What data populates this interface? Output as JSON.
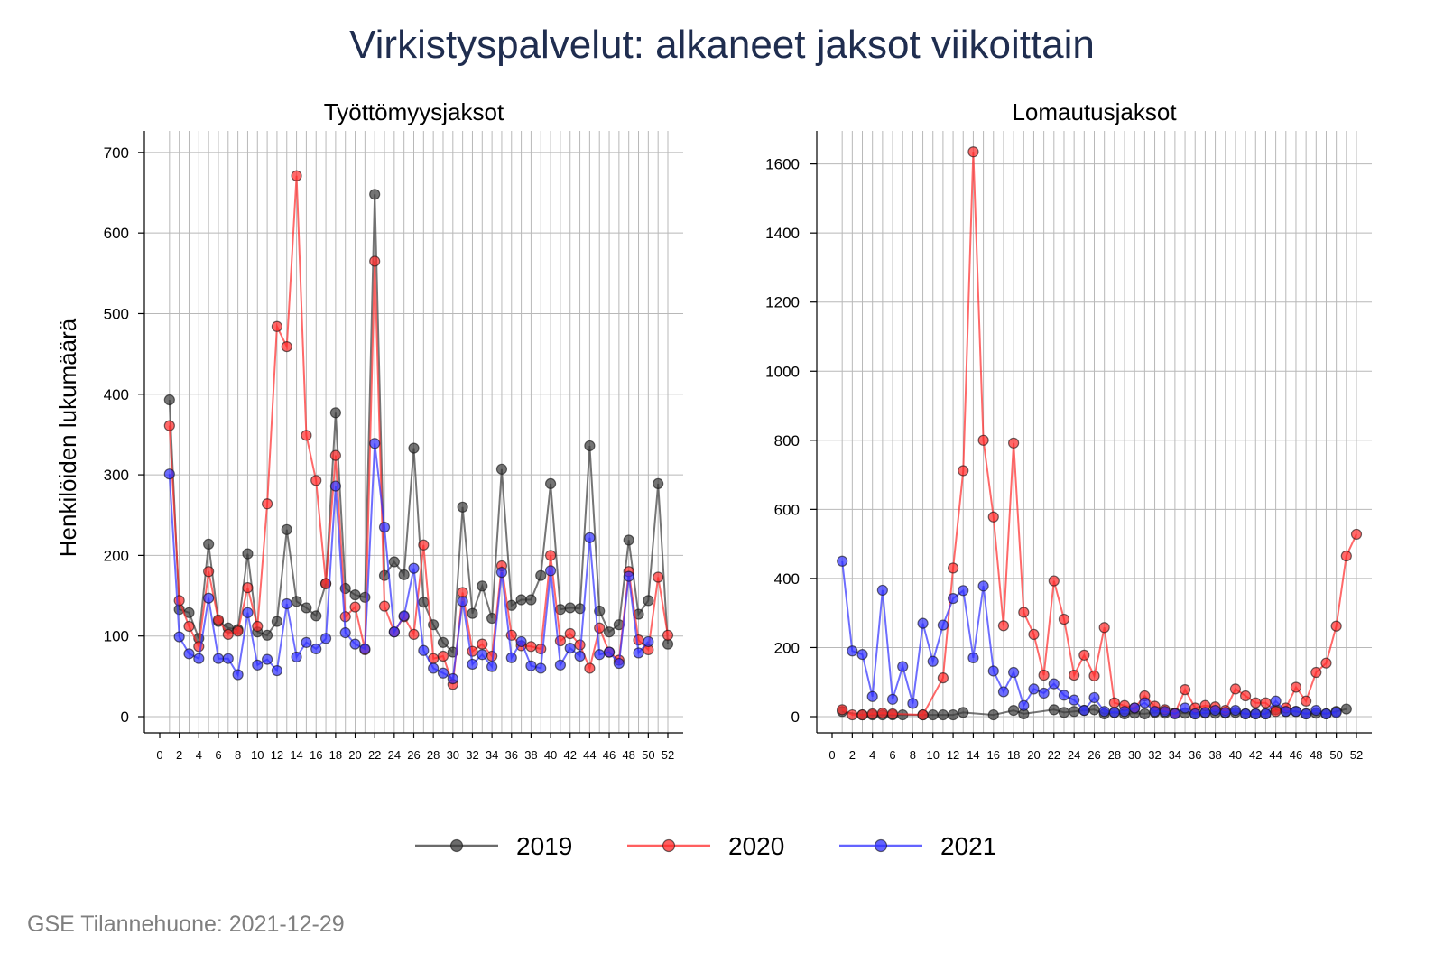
{
  "title": "Virkistyspalvelut: alkaneet jaksot viikoittain",
  "source": "GSE Tilannehuone: 2021-12-29",
  "ylabel": "Henkilöiden lukumäärä",
  "legend": [
    {
      "name": "2019",
      "color": "#3a3a3a"
    },
    {
      "name": "2020",
      "color": "#ff2a2a"
    },
    {
      "name": "2021",
      "color": "#2f2fff"
    }
  ],
  "chart_data": [
    {
      "type": "line",
      "title": "Työttömyysjaksot",
      "ylabel": "Henkilöiden lukumäärä",
      "xlim": [
        0,
        52
      ],
      "ylim": [
        0,
        720
      ],
      "xticks": [
        0,
        2,
        4,
        6,
        8,
        10,
        12,
        14,
        16,
        18,
        20,
        22,
        24,
        26,
        28,
        30,
        32,
        34,
        36,
        38,
        40,
        42,
        44,
        46,
        48,
        50,
        52
      ],
      "yticks": [
        0,
        100,
        200,
        300,
        400,
        500,
        600,
        700
      ],
      "grid": true,
      "series": [
        {
          "name": "2019",
          "color": "#3a3a3a",
          "x": [
            1,
            2,
            3,
            4,
            5,
            6,
            7,
            8,
            9,
            10,
            11,
            12,
            13,
            14,
            15,
            16,
            17,
            18,
            19,
            20,
            21,
            22,
            23,
            24,
            25,
            26,
            27,
            28,
            29,
            30,
            31,
            32,
            33,
            34,
            35,
            36,
            37,
            38,
            39,
            40,
            41,
            42,
            43,
            44,
            45,
            46,
            47,
            48,
            49,
            50,
            51,
            52
          ],
          "y": [
            393,
            133,
            129,
            97,
            214,
            118,
            110,
            108,
            202,
            105,
            101,
            118,
            232,
            143,
            135,
            125,
            165,
            377,
            159,
            151,
            148,
            648,
            175,
            192,
            176,
            333,
            142,
            114,
            92,
            80,
            260,
            128,
            162,
            122,
            307,
            138,
            145,
            145,
            175,
            289,
            133,
            135,
            134,
            336,
            131,
            105,
            114,
            219,
            127,
            144,
            289,
            90
          ]
        },
        {
          "name": "2020",
          "color": "#ff2a2a",
          "x": [
            1,
            2,
            3,
            4,
            5,
            6,
            7,
            8,
            9,
            10,
            11,
            12,
            13,
            14,
            15,
            16,
            17,
            18,
            19,
            20,
            21,
            22,
            23,
            24,
            25,
            26,
            27,
            28,
            29,
            30,
            31,
            32,
            33,
            34,
            35,
            36,
            37,
            38,
            39,
            40,
            41,
            42,
            43,
            44,
            45,
            46,
            47,
            48,
            49,
            50,
            51,
            52
          ],
          "y": [
            361,
            144,
            112,
            87,
            180,
            120,
            102,
            106,
            160,
            112,
            264,
            484,
            459,
            671,
            349,
            293,
            165,
            324,
            124,
            136,
            83,
            565,
            137,
            105,
            124,
            102,
            213,
            72,
            75,
            40,
            154,
            81,
            90,
            75,
            187,
            101,
            88,
            87,
            84,
            200,
            94,
            103,
            89,
            60,
            110,
            80,
            70,
            180,
            95,
            83,
            173,
            101
          ]
        },
        {
          "name": "2021",
          "color": "#2f2fff",
          "x": [
            1,
            2,
            3,
            4,
            5,
            6,
            7,
            8,
            9,
            10,
            11,
            12,
            13,
            14,
            15,
            16,
            17,
            18,
            19,
            20,
            21,
            22,
            23,
            24,
            25,
            26,
            27,
            28,
            29,
            30,
            31,
            32,
            33,
            34,
            35,
            36,
            37,
            38,
            39,
            40,
            41,
            42,
            43,
            44,
            45,
            46,
            47,
            48,
            49,
            50
          ],
          "y": [
            301,
            99,
            78,
            72,
            147,
            72,
            72,
            52,
            129,
            64,
            71,
            57,
            140,
            74,
            92,
            84,
            97,
            286,
            104,
            90,
            84,
            339,
            235,
            105,
            125,
            184,
            82,
            60,
            54,
            47,
            143,
            65,
            77,
            62,
            179,
            73,
            93,
            63,
            60,
            181,
            64,
            85,
            75,
            222,
            77,
            80,
            66,
            174,
            79,
            93
          ]
        }
      ]
    },
    {
      "type": "line",
      "title": "Lomautusjaksot",
      "xlim": [
        0,
        52
      ],
      "ylim": [
        0,
        1680
      ],
      "xticks": [
        0,
        2,
        4,
        6,
        8,
        10,
        12,
        14,
        16,
        18,
        20,
        22,
        24,
        26,
        28,
        30,
        32,
        34,
        36,
        38,
        40,
        42,
        44,
        46,
        48,
        50,
        52
      ],
      "yticks": [
        0,
        200,
        400,
        600,
        800,
        1000,
        1200,
        1400,
        1600
      ],
      "grid": true,
      "series": [
        {
          "name": "2019",
          "color": "#3a3a3a",
          "x": [
            1,
            3,
            4,
            5,
            6,
            7,
            9,
            10,
            11,
            12,
            13,
            16,
            18,
            19,
            22,
            23,
            24,
            25,
            26,
            27,
            28,
            29,
            30,
            31,
            32,
            33,
            34,
            35,
            36,
            37,
            38,
            39,
            40,
            41,
            42,
            43,
            44,
            45,
            46,
            47,
            48,
            49,
            50,
            51
          ],
          "y": [
            15,
            5,
            5,
            5,
            5,
            5,
            5,
            5,
            5,
            5,
            12,
            5,
            18,
            8,
            20,
            12,
            15,
            18,
            20,
            8,
            12,
            8,
            10,
            8,
            12,
            10,
            10,
            10,
            8,
            10,
            10,
            10,
            12,
            8,
            8,
            8,
            20,
            15,
            15,
            8,
            10,
            8,
            15,
            22
          ]
        },
        {
          "name": "2020",
          "color": "#ff2a2a",
          "x": [
            1,
            2,
            3,
            4,
            5,
            6,
            9,
            11,
            12,
            13,
            14,
            15,
            16,
            17,
            18,
            19,
            20,
            21,
            22,
            23,
            24,
            25,
            26,
            27,
            28,
            29,
            30,
            31,
            32,
            33,
            34,
            35,
            36,
            37,
            38,
            39,
            40,
            41,
            42,
            43,
            44,
            45,
            46,
            47,
            48,
            49,
            50,
            51,
            52
          ],
          "y": [
            20,
            5,
            5,
            8,
            10,
            8,
            5,
            112,
            430,
            712,
            1635,
            800,
            578,
            263,
            792,
            302,
            238,
            120,
            393,
            282,
            120,
            178,
            118,
            258,
            40,
            32,
            25,
            60,
            30,
            20,
            10,
            78,
            25,
            32,
            28,
            18,
            80,
            60,
            40,
            40,
            15,
            25,
            85,
            45,
            128,
            155,
            262,
            465,
            528
          ]
        },
        {
          "name": "2021",
          "color": "#2f2fff",
          "x": [
            1,
            2,
            3,
            4,
            5,
            6,
            7,
            8,
            9,
            10,
            11,
            12,
            13,
            14,
            15,
            16,
            17,
            18,
            19,
            20,
            21,
            22,
            23,
            24,
            25,
            26,
            27,
            28,
            29,
            30,
            31,
            32,
            33,
            34,
            35,
            36,
            37,
            38,
            39,
            40,
            41,
            42,
            43,
            44,
            45,
            46,
            47,
            48,
            49,
            50
          ],
          "y": [
            450,
            190,
            180,
            58,
            366,
            50,
            145,
            38,
            270,
            160,
            265,
            342,
            365,
            170,
            378,
            132,
            72,
            128,
            32,
            80,
            68,
            95,
            62,
            48,
            18,
            55,
            15,
            12,
            15,
            25,
            40,
            15,
            15,
            8,
            25,
            8,
            12,
            18,
            12,
            18,
            8,
            8,
            8,
            45,
            15,
            15,
            8,
            18,
            8,
            12
          ]
        }
      ]
    }
  ]
}
